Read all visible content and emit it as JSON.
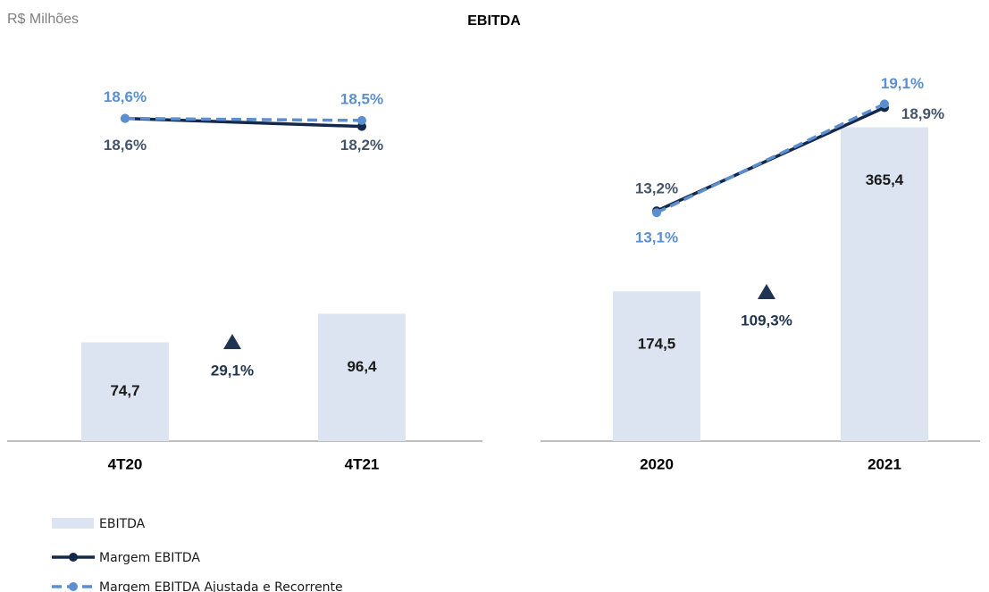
{
  "header": {
    "unit": "R$ Milhões",
    "title": "EBITDA"
  },
  "chart_data": [
    {
      "type": "bar",
      "categories": [
        "4T20",
        "4T21"
      ],
      "ylim": [
        0,
        273
      ],
      "y2lim": [
        2.5,
        20.5
      ],
      "annotation": "29,1%",
      "annotation_color": "#1f3352",
      "series": [
        {
          "name": "EBITDA",
          "color": "#dbe4f0",
          "values": [
            74.7,
            96.4
          ],
          "value_labels": [
            "74,7",
            "96,4"
          ]
        },
        {
          "name": "Margem EBITDA",
          "color": "#14284a",
          "label_color": "#44546a",
          "axis": "y2",
          "type": "line",
          "line_style": "solid",
          "values": [
            18.6,
            18.2
          ],
          "value_labels": [
            "18,6%",
            "18,2%"
          ]
        },
        {
          "name": "Margem EBITDA Ajustada e Recorrente",
          "color": "#5b8fd1",
          "label_color": "#5b8fd1",
          "axis": "y2",
          "type": "line",
          "line_style": "dashed",
          "values": [
            18.6,
            18.5
          ],
          "value_labels": [
            "18,6%",
            "18,5%"
          ]
        }
      ]
    },
    {
      "type": "bar",
      "categories": [
        "2020",
        "2021"
      ],
      "ylim": [
        0,
        420
      ],
      "y2lim": [
        0.5,
        20.4
      ],
      "annotation": "109,3%",
      "annotation_color": "#1f3352",
      "series": [
        {
          "color": "#dbe4f0",
          "values": [
            174.5,
            365.4
          ],
          "value_labels": [
            "174,5",
            "365,4"
          ]
        },
        {
          "color": "#14284a",
          "label_color": "#44546a",
          "axis": "y2",
          "type": "line",
          "line_style": "solid",
          "values": [
            13.2,
            18.9
          ],
          "value_labels": [
            "13,2%",
            "18,9%"
          ]
        },
        {
          "color": "#5b8fd1",
          "label_color": "#5b8fd1",
          "axis": "y2",
          "type": "line",
          "line_style": "dashed",
          "values": [
            13.1,
            19.1
          ],
          "value_labels": [
            "13,1%",
            "19,1%"
          ]
        }
      ]
    }
  ]
}
